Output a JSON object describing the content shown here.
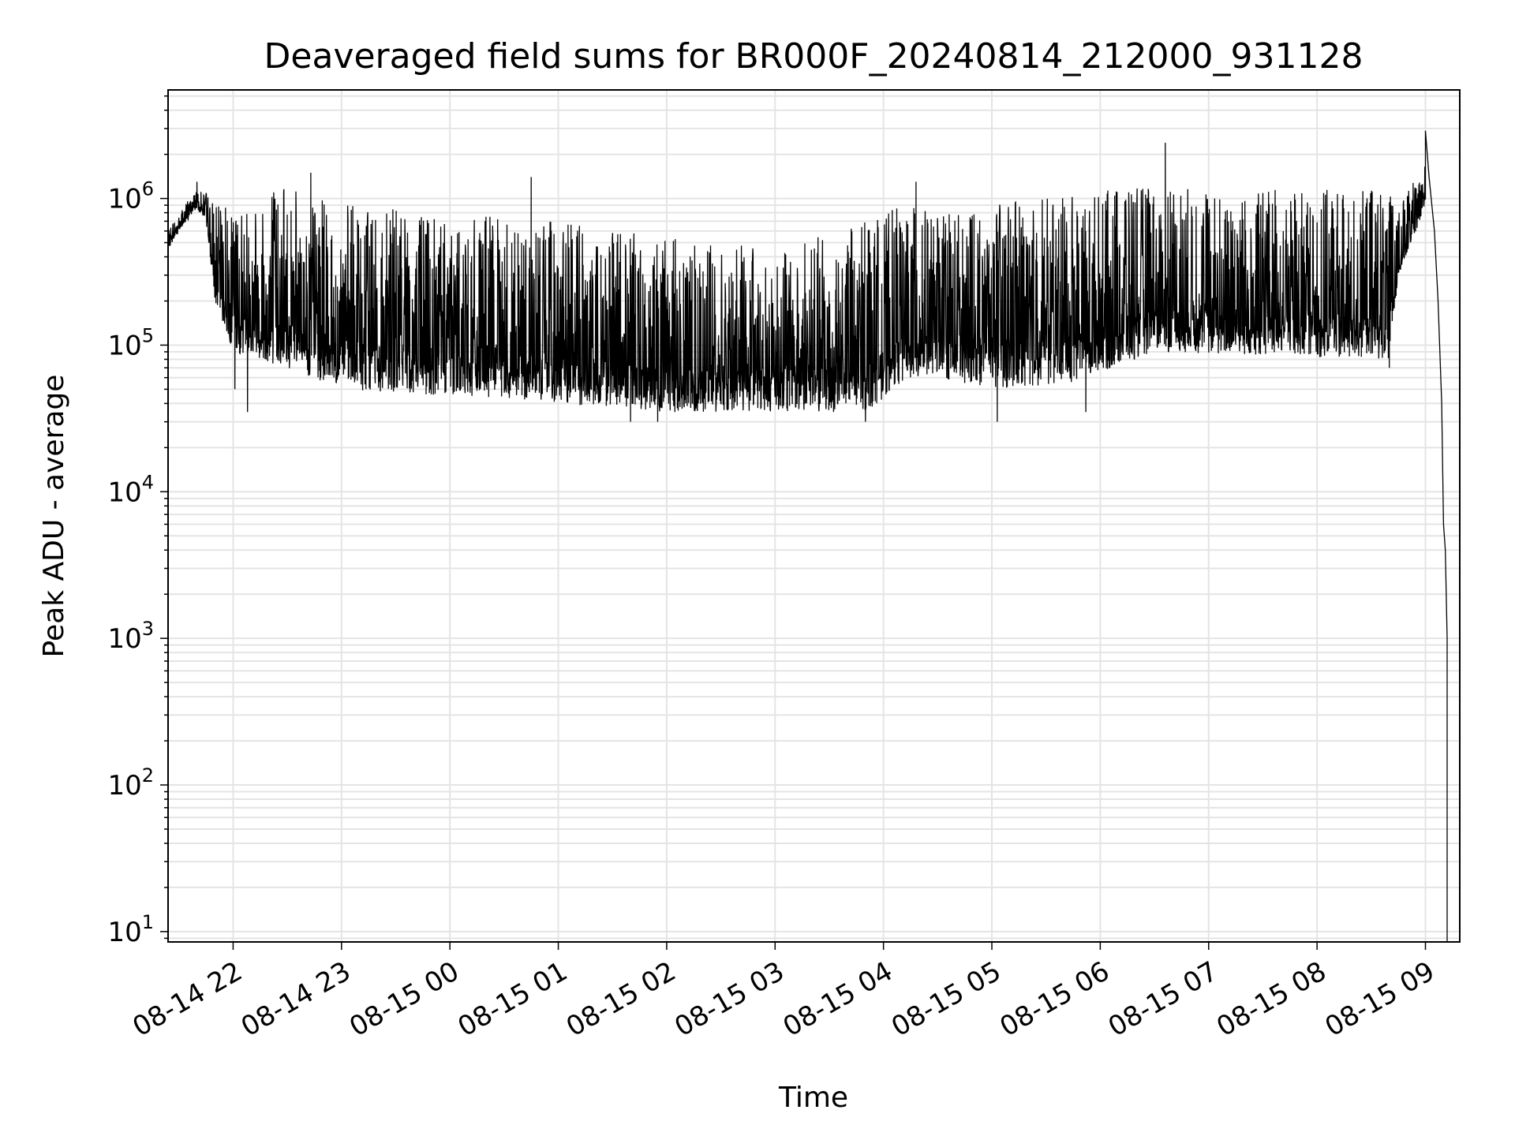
{
  "chart_data": {
    "type": "line",
    "title": "Deaveraged field sums for BR000F_20240814_212000_931128",
    "xlabel": "Time",
    "ylabel": "Peak ADU - average",
    "yscale": "log",
    "ylim": [
      8.5,
      5500000
    ],
    "xlim": [
      "2024-08-14 21:24",
      "2024-08-15 09:19"
    ],
    "grid": true,
    "x_ticks": [
      {
        "label": "08-14 22",
        "at": "2024-08-14 22:00"
      },
      {
        "label": "08-14 23",
        "at": "2024-08-14 23:00"
      },
      {
        "label": "08-15 00",
        "at": "2024-08-15 00:00"
      },
      {
        "label": "08-15 01",
        "at": "2024-08-15 01:00"
      },
      {
        "label": "08-15 02",
        "at": "2024-08-15 02:00"
      },
      {
        "label": "08-15 03",
        "at": "2024-08-15 03:00"
      },
      {
        "label": "08-15 04",
        "at": "2024-08-15 04:00"
      },
      {
        "label": "08-15 05",
        "at": "2024-08-15 05:00"
      },
      {
        "label": "08-15 06",
        "at": "2024-08-15 06:00"
      },
      {
        "label": "08-15 07",
        "at": "2024-08-15 07:00"
      },
      {
        "label": "08-15 08",
        "at": "2024-08-15 08:00"
      },
      {
        "label": "08-15 09",
        "at": "2024-08-15 09:00"
      }
    ],
    "y_ticks": [
      {
        "base": "10",
        "exp": "1",
        "value": 10
      },
      {
        "base": "10",
        "exp": "2",
        "value": 100
      },
      {
        "base": "10",
        "exp": "3",
        "value": 1000
      },
      {
        "base": "10",
        "exp": "4",
        "value": 10000
      },
      {
        "base": "10",
        "exp": "5",
        "value": 100000
      },
      {
        "base": "10",
        "exp": "6",
        "value": 1000000
      }
    ],
    "series": [
      {
        "color": "#000000",
        "envelope": [
          {
            "x": "2024-08-14 21:24",
            "low": 450000,
            "high": 600000
          },
          {
            "x": "2024-08-14 21:30",
            "low": 600000,
            "high": 800000
          },
          {
            "x": "2024-08-14 21:40",
            "low": 850000,
            "high": 1200000
          },
          {
            "x": "2024-08-14 21:45",
            "low": 700000,
            "high": 1100000
          },
          {
            "x": "2024-08-14 21:50",
            "low": 200000,
            "high": 900000
          },
          {
            "x": "2024-08-14 22:00",
            "low": 90000,
            "high": 900000
          },
          {
            "x": "2024-08-14 22:30",
            "low": 70000,
            "high": 1300000
          },
          {
            "x": "2024-08-14 23:00",
            "low": 50000,
            "high": 900000
          },
          {
            "x": "2024-08-15 00:00",
            "low": 45000,
            "high": 800000
          },
          {
            "x": "2024-08-15 01:00",
            "low": 40000,
            "high": 700000
          },
          {
            "x": "2024-08-15 02:00",
            "low": 35000,
            "high": 550000
          },
          {
            "x": "2024-08-15 03:00",
            "low": 35000,
            "high": 450000
          },
          {
            "x": "2024-08-15 03:50",
            "low": 35000,
            "high": 700000
          },
          {
            "x": "2024-08-15 04:15",
            "low": 60000,
            "high": 1000000
          },
          {
            "x": "2024-08-15 04:30",
            "low": 60000,
            "high": 800000
          },
          {
            "x": "2024-08-15 05:00",
            "low": 50000,
            "high": 900000
          },
          {
            "x": "2024-08-15 05:45",
            "low": 55000,
            "high": 1100000
          },
          {
            "x": "2024-08-15 06:30",
            "low": 90000,
            "high": 1200000
          },
          {
            "x": "2024-08-15 07:30",
            "low": 85000,
            "high": 1150000
          },
          {
            "x": "2024-08-15 08:40",
            "low": 80000,
            "high": 1150000
          },
          {
            "x": "2024-08-15 08:45",
            "low": 300000,
            "high": 900000
          },
          {
            "x": "2024-08-15 08:55",
            "low": 600000,
            "high": 1500000
          },
          {
            "x": "2024-08-15 09:00",
            "low": 900000,
            "high": 1700000
          }
        ],
        "spikes": [
          {
            "x": "2024-08-14 21:40",
            "y": 1300000
          },
          {
            "x": "2024-08-14 22:01",
            "y": 50000
          },
          {
            "x": "2024-08-14 22:08",
            "y": 35000
          },
          {
            "x": "2024-08-14 22:43",
            "y": 1500000
          },
          {
            "x": "2024-08-15 00:45",
            "y": 1400000
          },
          {
            "x": "2024-08-15 01:40",
            "y": 30000
          },
          {
            "x": "2024-08-15 01:55",
            "y": 30000
          },
          {
            "x": "2024-08-15 03:50",
            "y": 30000
          },
          {
            "x": "2024-08-15 04:18",
            "y": 1300000
          },
          {
            "x": "2024-08-15 05:03",
            "y": 30000
          },
          {
            "x": "2024-08-15 05:52",
            "y": 35000
          },
          {
            "x": "2024-08-15 06:36",
            "y": 2400000
          },
          {
            "x": "2024-08-15 08:40",
            "y": 70000
          }
        ],
        "tail": [
          {
            "x": "2024-08-15 09:00",
            "y": 2900000
          },
          {
            "x": "2024-08-15 09:02",
            "y": 1400000
          },
          {
            "x": "2024-08-15 09:05",
            "y": 600000
          },
          {
            "x": "2024-08-15 09:07",
            "y": 200000
          },
          {
            "x": "2024-08-15 09:09",
            "y": 40000
          },
          {
            "x": "2024-08-15 09:10",
            "y": 6000
          },
          {
            "x": "2024-08-15 09:11",
            "y": 4000
          },
          {
            "x": "2024-08-15 09:12",
            "y": 1000
          },
          {
            "x": "2024-08-15 09:12",
            "y": 100
          },
          {
            "x": "2024-08-15 09:12",
            "y": 8.5
          }
        ]
      }
    ]
  }
}
